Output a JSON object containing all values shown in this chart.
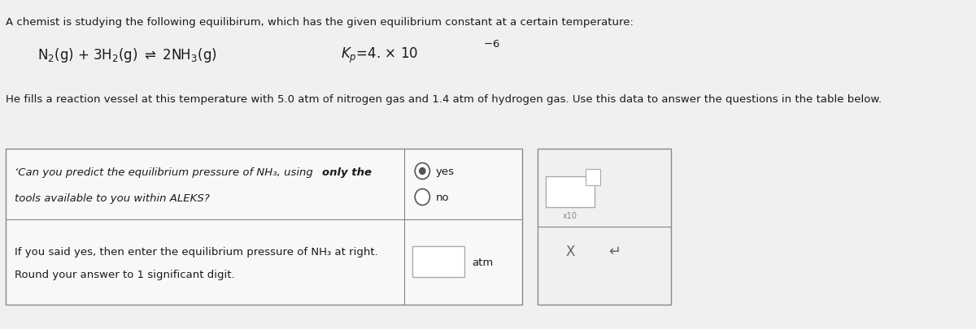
{
  "bg_color": "#f0f0f0",
  "header_text": "A chemist is studying the following equilibirum, which has the given equilibrium constant at a certain temperature:",
  "equation_left": "N₂(g) + 3 H₂(g) ⇌ 2 NH₃(g)",
  "equation_right": "Kₚ = 4. × 10",
  "equation_exp": "−6",
  "body_text": "He fills a reaction vessel at this temperature with 5.0 atm of nitrogen gas and 1.4 atm of hydrogen gas. Use this data to answer the questions in the table below.",
  "table_q1_text1": "'Can you predict the equilibrium pressure of NH₃, using ",
  "table_q1_bold": "only the",
  "table_q1_text2": "tools available to you within ALEKS?",
  "table_q2_text1": "If you said yes, then enter the equilibrium pressure of NH₃ at right.",
  "table_q2_text2": "Round your answer to 1 significant digit.",
  "yes_label": "yes",
  "no_label": "no",
  "atm_label": "atm",
  "box_input_label": "x10",
  "cross_label": "X",
  "undo_label": "↵",
  "font_color": "#1a1a1a",
  "table_border_color": "#888888",
  "radio_color": "#555555",
  "input_box_color": "#ffffff",
  "input_box_border": "#aaaaaa"
}
